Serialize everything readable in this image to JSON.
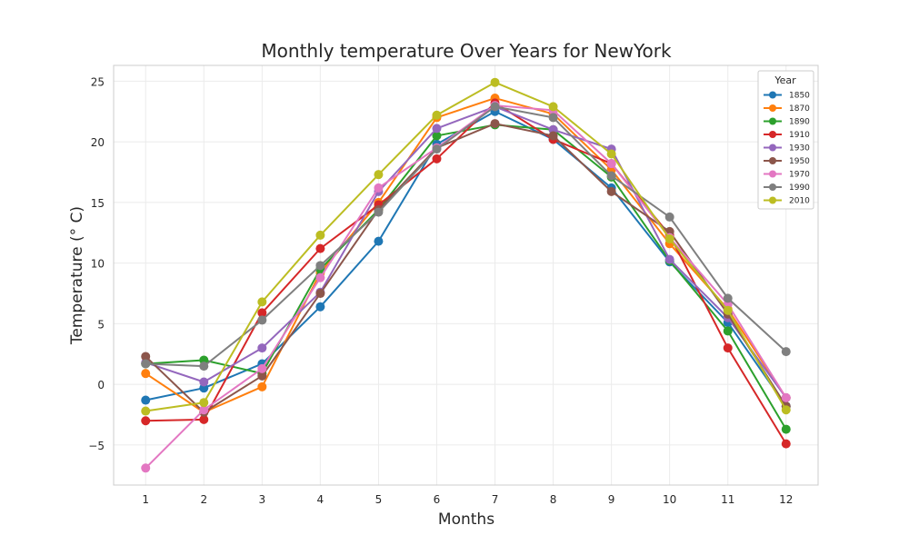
{
  "chart_data": {
    "type": "line",
    "title": "Monthly temperature Over Years for NewYork",
    "xlabel": "Months",
    "ylabel": "Temperature (° C)",
    "x": [
      1,
      2,
      3,
      4,
      5,
      6,
      7,
      8,
      9,
      10,
      11,
      12
    ],
    "xlim": [
      0.45,
      12.55
    ],
    "ylim": [
      -8.3,
      26.3
    ],
    "yticks": [
      -5,
      0,
      5,
      10,
      15,
      20,
      25
    ],
    "grid": true,
    "legend": {
      "title": "Year",
      "placement": "top-right"
    },
    "series": [
      {
        "name": "1850",
        "color": "#1f77b4",
        "values": [
          -1.3,
          -0.3,
          1.7,
          6.4,
          11.8,
          19.8,
          22.5,
          20.2,
          16.2,
          10.1,
          5.1,
          -1.8
        ]
      },
      {
        "name": "1870",
        "color": "#ff7f0e",
        "values": [
          0.9,
          -2.3,
          -0.2,
          9.2,
          15.0,
          22.0,
          23.6,
          22.3,
          17.7,
          11.6,
          6.2,
          -1.1
        ]
      },
      {
        "name": "1890",
        "color": "#2ca02c",
        "values": [
          1.7,
          2.0,
          0.9,
          9.5,
          14.4,
          20.5,
          21.4,
          21.0,
          17.1,
          10.2,
          4.4,
          -3.7
        ]
      },
      {
        "name": "1910",
        "color": "#d62728",
        "values": [
          -3.0,
          -2.9,
          5.9,
          11.2,
          14.8,
          18.6,
          23.2,
          20.2,
          18.2,
          12.3,
          3.0,
          -4.9
        ]
      },
      {
        "name": "1930",
        "color": "#9467bd",
        "values": [
          1.8,
          0.2,
          3.0,
          7.6,
          15.9,
          21.1,
          22.9,
          21.0,
          19.4,
          10.3,
          5.5,
          -1.1
        ]
      },
      {
        "name": "1950",
        "color": "#8c564b",
        "values": [
          2.3,
          -2.3,
          0.7,
          7.5,
          14.4,
          19.5,
          21.5,
          20.5,
          15.9,
          12.6,
          5.8,
          -1.8
        ]
      },
      {
        "name": "1970",
        "color": "#e377c2",
        "values": [
          -6.9,
          -2.1,
          1.3,
          8.8,
          16.2,
          19.5,
          23.0,
          22.6,
          18.2,
          12.1,
          6.6,
          -1.1
        ]
      },
      {
        "name": "1990",
        "color": "#7f7f7f",
        "values": [
          1.7,
          1.5,
          5.3,
          9.8,
          14.2,
          19.4,
          22.9,
          22.0,
          17.2,
          13.8,
          7.1,
          2.7
        ]
      },
      {
        "name": "2010",
        "color": "#bcbd22",
        "values": [
          -2.2,
          -1.5,
          6.8,
          12.3,
          17.3,
          22.2,
          24.9,
          22.9,
          19.0,
          12.0,
          6.1,
          -2.1
        ]
      }
    ]
  }
}
